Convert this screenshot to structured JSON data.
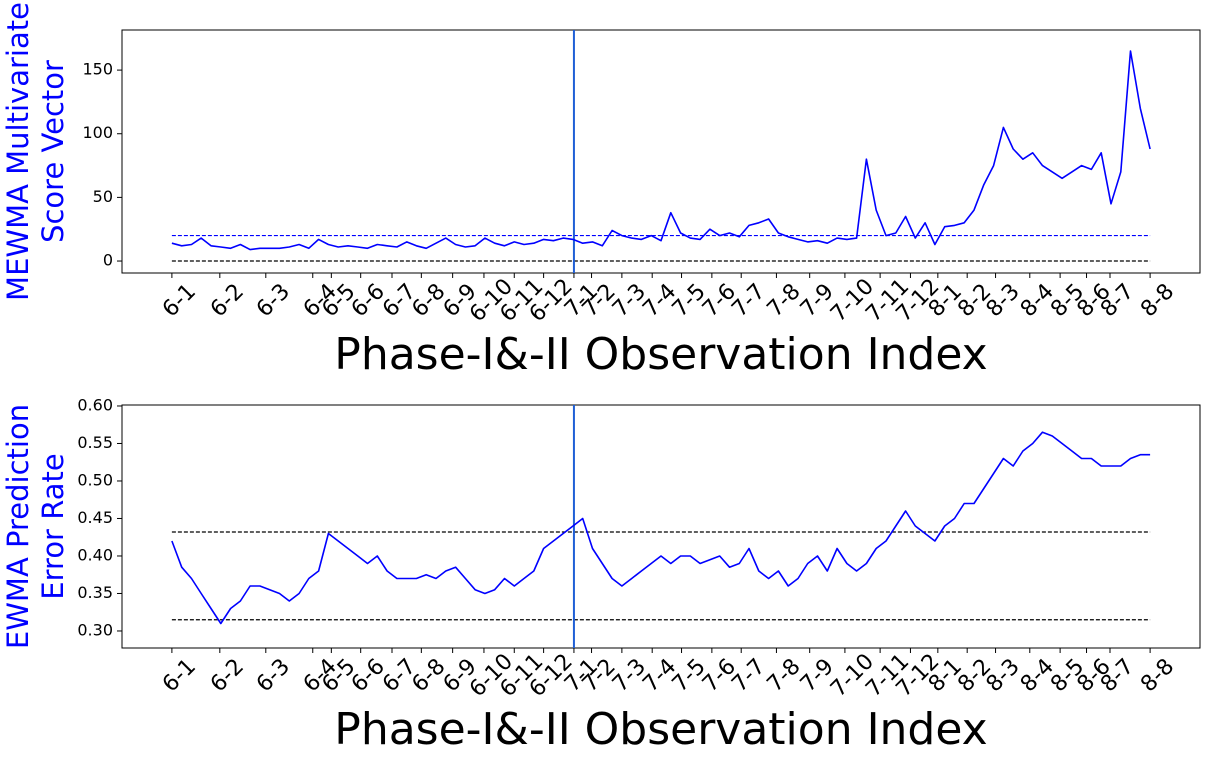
{
  "chart_data": [
    {
      "type": "line",
      "ylabel": [
        "MEWMA Multivariate",
        "Score Vector"
      ],
      "xlabel": "Phase-I&-II Observation Index",
      "xlim": [
        -5.1,
        105.1
      ],
      "ylim": [
        -9.4,
        181.5
      ],
      "yticks": [
        0,
        50,
        100,
        150
      ],
      "xticks": [
        {
          "value": 0,
          "label": "6-1"
        },
        {
          "value": 4.9,
          "label": "6-2"
        },
        {
          "value": 9.6,
          "label": "6-3"
        },
        {
          "value": 14.4,
          "label": "6-4"
        },
        {
          "value": 16.3,
          "label": "6-5"
        },
        {
          "value": 19.3,
          "label": "6-6"
        },
        {
          "value": 22.5,
          "label": "6-7"
        },
        {
          "value": 25.5,
          "label": "6-8"
        },
        {
          "value": 28.7,
          "label": "6-9"
        },
        {
          "value": 31.9,
          "label": "6-10"
        },
        {
          "value": 35.0,
          "label": "6-11"
        },
        {
          "value": 38.0,
          "label": "6-12"
        },
        {
          "value": 41.1,
          "label": "7-1"
        },
        {
          "value": 42.9,
          "label": "7-2"
        },
        {
          "value": 46.0,
          "label": "7-3"
        },
        {
          "value": 49.1,
          "label": "7-4"
        },
        {
          "value": 52.1,
          "label": "7-5"
        },
        {
          "value": 55.2,
          "label": "7-6"
        },
        {
          "value": 58.2,
          "label": "7-7"
        },
        {
          "value": 61.8,
          "label": "7-8"
        },
        {
          "value": 65.2,
          "label": "7-9"
        },
        {
          "value": 68.8,
          "label": "7-10"
        },
        {
          "value": 72.4,
          "label": "7-11"
        },
        {
          "value": 75.5,
          "label": "7-12"
        },
        {
          "value": 78.3,
          "label": "8-1"
        },
        {
          "value": 81.3,
          "label": "8-2"
        },
        {
          "value": 84.2,
          "label": "8-3"
        },
        {
          "value": 87.7,
          "label": "8-4"
        },
        {
          "value": 90.8,
          "label": "8-5"
        },
        {
          "value": 93.5,
          "label": "8-6"
        },
        {
          "value": 95.9,
          "label": "8-7"
        },
        {
          "value": 100,
          "label": "8-8"
        }
      ],
      "vline": {
        "value": 41.1,
        "color": "#1f5fd6"
      },
      "hlines": [
        {
          "value": 20,
          "color": "#0000ff"
        },
        {
          "value": 0,
          "color": "#000000"
        }
      ],
      "x": [
        0,
        1,
        2,
        3,
        4,
        5,
        6,
        7,
        8,
        9,
        10,
        11,
        12,
        13,
        14,
        15,
        16,
        17,
        18,
        19,
        20,
        21,
        22,
        23,
        24,
        25,
        26,
        27,
        28,
        29,
        30,
        31,
        32,
        33,
        34,
        35,
        36,
        37,
        38,
        39,
        40,
        41,
        42,
        43,
        44,
        45,
        46,
        47,
        48,
        49,
        50,
        51,
        52,
        53,
        54,
        55,
        56,
        57,
        58,
        59,
        60,
        61,
        62,
        63,
        64,
        65,
        66,
        67,
        68,
        69,
        70,
        71,
        72,
        73,
        74,
        75,
        76,
        77,
        78,
        79,
        80,
        81,
        82,
        83,
        84,
        85,
        86,
        87,
        88,
        89,
        90,
        91,
        92,
        93,
        94,
        95,
        96,
        97,
        98,
        99,
        100
      ],
      "series": [
        {
          "color": "#0000ff",
          "values": [
            14,
            12,
            13,
            18,
            12,
            11,
            10,
            13,
            9,
            10,
            10,
            10,
            11,
            13,
            10,
            17,
            13,
            11,
            12,
            11,
            10,
            13,
            12,
            11,
            15,
            12,
            10,
            14,
            18,
            13,
            11,
            12,
            18,
            14,
            12,
            15,
            13,
            14,
            17,
            16,
            18,
            17,
            14,
            15,
            12,
            24,
            20,
            18,
            17,
            20,
            16,
            38,
            22,
            18,
            17,
            25,
            20,
            22,
            19,
            28,
            30,
            33,
            22,
            19,
            17,
            15,
            16,
            14,
            18,
            17,
            18,
            80,
            40,
            20,
            22,
            35,
            18,
            30,
            13,
            27,
            28,
            30,
            40,
            60,
            75,
            105,
            88,
            80,
            85,
            75,
            70,
            65,
            70,
            75,
            72,
            85,
            45,
            70,
            165,
            120,
            88
          ]
        }
      ]
    },
    {
      "type": "line",
      "ylabel": [
        "EWMA Prediction",
        "Error Rate"
      ],
      "xlabel": "Phase-I&-II Observation Index",
      "xlim": [
        -5.1,
        105.1
      ],
      "ylim": [
        0.2773,
        0.6013
      ],
      "yticks": [
        {
          "value": 0.3,
          "label": "0.30"
        },
        {
          "value": 0.35,
          "label": "0.35"
        },
        {
          "value": 0.4,
          "label": "0.40"
        },
        {
          "value": 0.45,
          "label": "0.45"
        },
        {
          "value": 0.5,
          "label": "0.50"
        },
        {
          "value": 0.55,
          "label": "0.55"
        },
        {
          "value": 0.6,
          "label": "0.60"
        }
      ],
      "xticks": [
        {
          "value": 0,
          "label": "6-1"
        },
        {
          "value": 4.9,
          "label": "6-2"
        },
        {
          "value": 9.6,
          "label": "6-3"
        },
        {
          "value": 14.4,
          "label": "6-4"
        },
        {
          "value": 16.3,
          "label": "6-5"
        },
        {
          "value": 19.3,
          "label": "6-6"
        },
        {
          "value": 22.5,
          "label": "6-7"
        },
        {
          "value": 25.5,
          "label": "6-8"
        },
        {
          "value": 28.7,
          "label": "6-9"
        },
        {
          "value": 31.9,
          "label": "6-10"
        },
        {
          "value": 35.0,
          "label": "6-11"
        },
        {
          "value": 38.0,
          "label": "6-12"
        },
        {
          "value": 41.1,
          "label": "7-1"
        },
        {
          "value": 42.9,
          "label": "7-2"
        },
        {
          "value": 46.0,
          "label": "7-3"
        },
        {
          "value": 49.1,
          "label": "7-4"
        },
        {
          "value": 52.1,
          "label": "7-5"
        },
        {
          "value": 55.2,
          "label": "7-6"
        },
        {
          "value": 58.2,
          "label": "7-7"
        },
        {
          "value": 61.8,
          "label": "7-8"
        },
        {
          "value": 65.2,
          "label": "7-9"
        },
        {
          "value": 68.8,
          "label": "7-10"
        },
        {
          "value": 72.4,
          "label": "7-11"
        },
        {
          "value": 75.5,
          "label": "7-12"
        },
        {
          "value": 78.3,
          "label": "8-1"
        },
        {
          "value": 81.3,
          "label": "8-2"
        },
        {
          "value": 84.2,
          "label": "8-3"
        },
        {
          "value": 87.7,
          "label": "8-4"
        },
        {
          "value": 90.8,
          "label": "8-5"
        },
        {
          "value": 93.5,
          "label": "8-6"
        },
        {
          "value": 95.9,
          "label": "8-7"
        },
        {
          "value": 100,
          "label": "8-8"
        }
      ],
      "vline": {
        "value": 41.1,
        "color": "#1f5fd6"
      },
      "hlines": [
        {
          "value": 0.432,
          "color": "#000000"
        },
        {
          "value": 0.315,
          "color": "#000000"
        }
      ],
      "x": [
        0,
        1,
        2,
        3,
        4,
        5,
        6,
        7,
        8,
        9,
        10,
        11,
        12,
        13,
        14,
        15,
        16,
        17,
        18,
        19,
        20,
        21,
        22,
        23,
        24,
        25,
        26,
        27,
        28,
        29,
        30,
        31,
        32,
        33,
        34,
        35,
        36,
        37,
        38,
        39,
        40,
        41,
        42,
        43,
        44,
        45,
        46,
        47,
        48,
        49,
        50,
        51,
        52,
        53,
        54,
        55,
        56,
        57,
        58,
        59,
        60,
        61,
        62,
        63,
        64,
        65,
        66,
        67,
        68,
        69,
        70,
        71,
        72,
        73,
        74,
        75,
        76,
        77,
        78,
        79,
        80,
        81,
        82,
        83,
        84,
        85,
        86,
        87,
        88,
        89,
        90,
        91,
        92,
        93,
        94,
        95,
        96,
        97,
        98,
        99,
        100
      ],
      "series": [
        {
          "color": "#0000ff",
          "values": [
            0.42,
            0.385,
            0.37,
            0.35,
            0.33,
            0.31,
            0.33,
            0.34,
            0.36,
            0.36,
            0.355,
            0.35,
            0.34,
            0.35,
            0.37,
            0.38,
            0.43,
            0.42,
            0.41,
            0.4,
            0.39,
            0.4,
            0.38,
            0.37,
            0.37,
            0.37,
            0.375,
            0.37,
            0.38,
            0.385,
            0.37,
            0.355,
            0.35,
            0.355,
            0.37,
            0.36,
            0.37,
            0.38,
            0.41,
            0.42,
            0.43,
            0.44,
            0.45,
            0.41,
            0.39,
            0.37,
            0.36,
            0.37,
            0.38,
            0.39,
            0.4,
            0.39,
            0.4,
            0.4,
            0.39,
            0.395,
            0.4,
            0.385,
            0.39,
            0.41,
            0.38,
            0.37,
            0.38,
            0.36,
            0.37,
            0.39,
            0.4,
            0.38,
            0.41,
            0.39,
            0.38,
            0.39,
            0.41,
            0.42,
            0.44,
            0.46,
            0.44,
            0.43,
            0.42,
            0.44,
            0.45,
            0.47,
            0.47,
            0.49,
            0.51,
            0.53,
            0.52,
            0.54,
            0.55,
            0.565,
            0.56,
            0.55,
            0.54,
            0.53,
            0.53,
            0.52,
            0.52,
            0.52,
            0.53,
            0.535,
            0.535
          ]
        }
      ]
    }
  ]
}
